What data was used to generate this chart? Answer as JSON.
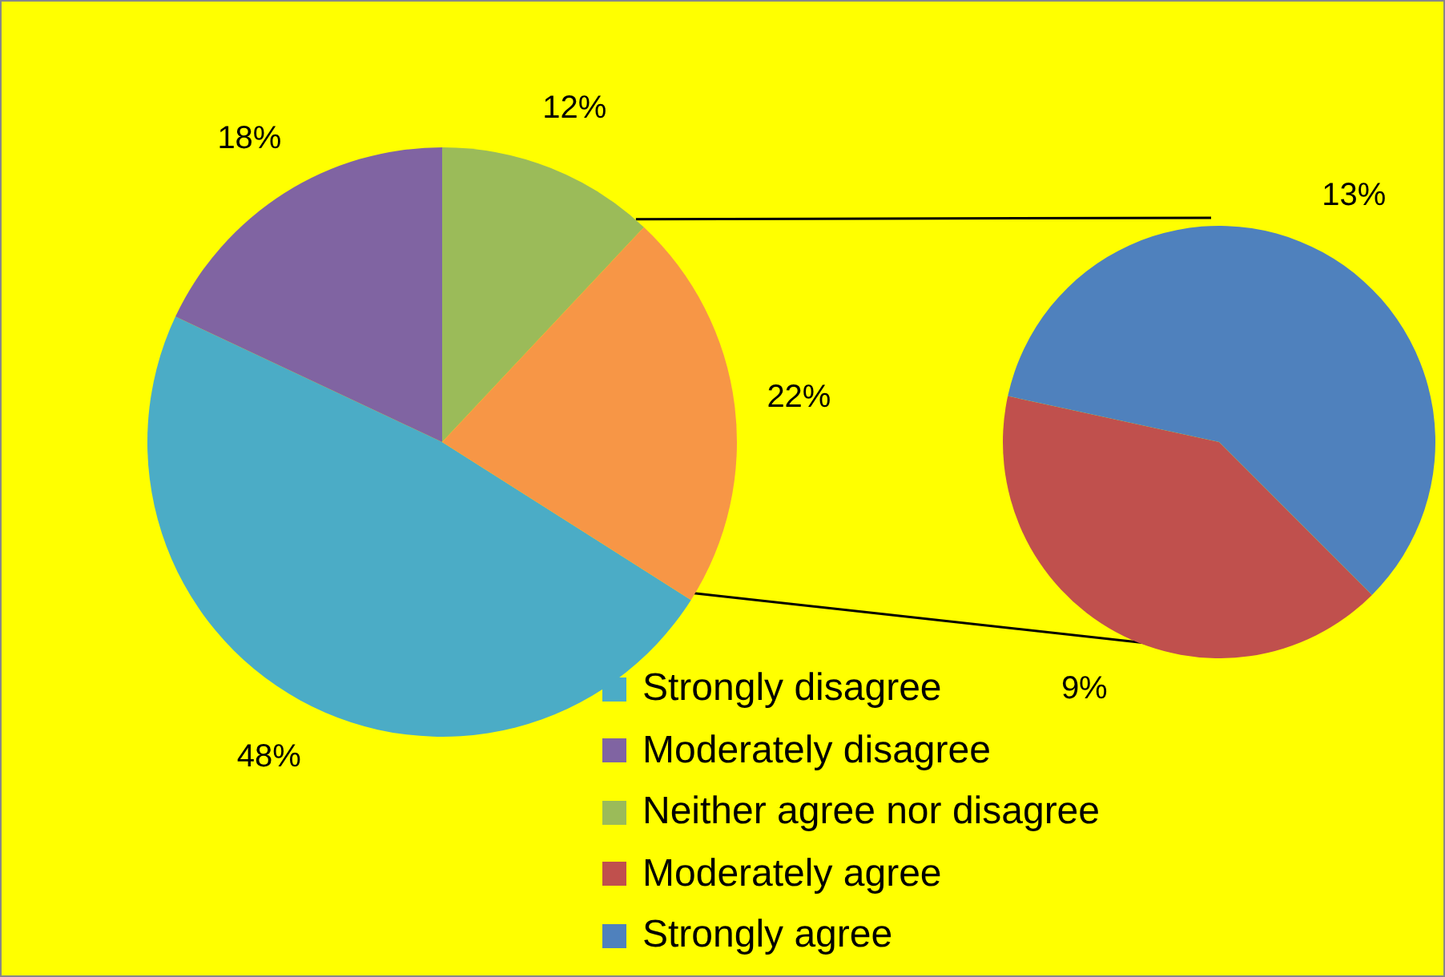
{
  "chart_data": [
    {
      "type": "pie",
      "categories": [
        "Strongly disagree",
        "Moderately disagree",
        "Neither agree nor disagree",
        null
      ],
      "values": [
        48,
        18,
        12,
        22
      ],
      "colors": [
        "#4bacc6",
        "#8064a2",
        "#9bbb59",
        "#f79646"
      ],
      "value_labels": [
        "48%",
        "18%",
        "12%",
        "22%"
      ],
      "legend": "bottom"
    },
    {
      "type": "pie",
      "categories": [
        "Moderately agree",
        "Strongly agree"
      ],
      "values": [
        9,
        13
      ],
      "colors": [
        "#c0504d",
        "#4f81bd"
      ],
      "value_labels": [
        "9%",
        "13%"
      ],
      "legend": "bottom"
    }
  ]
}
